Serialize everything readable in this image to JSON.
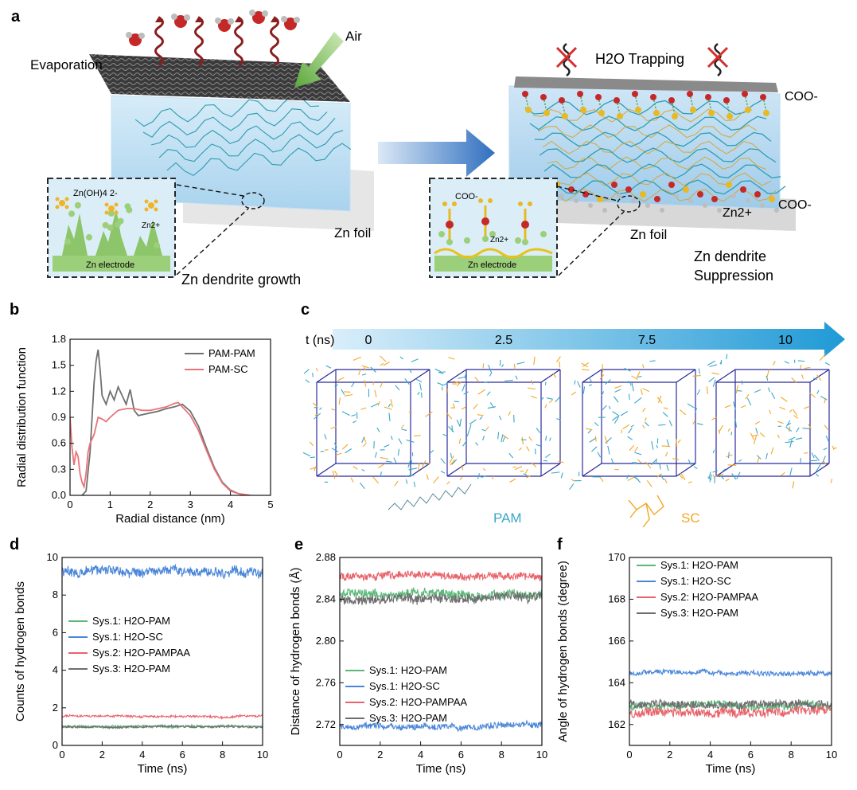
{
  "panel_a": {
    "letter": "a",
    "evaporation": "Evaporation",
    "air": "Air",
    "water_trapping": "H2O Trapping",
    "coo_top": "COO-",
    "coo_right": "COO-",
    "zn2_right": "Zn2+",
    "zn_foil_left": "Zn foil",
    "zn_foil_right": "Zn foil",
    "zn_dendrite_growth": "Zn dendrite growth",
    "zn_dendrite_suppression_1": "Zn dendrite",
    "zn_dendrite_suppression_2": "Suppression",
    "inset_left": {
      "zincate": "Zn(OH)4 2-",
      "zn2": "Zn2+",
      "electrode": "Zn electrode"
    },
    "inset_right": {
      "coo": "COO-",
      "zn2": "Zn2+",
      "electrode": "Zn electrode"
    }
  },
  "panel_c": {
    "letter": "c",
    "axis_label": "t (ns)",
    "times": [
      "0",
      "2.5",
      "7.5",
      "10"
    ],
    "legend_pam": "PAM",
    "legend_sc": "SC",
    "colors": {
      "arrow": "#1f9ad6",
      "pam": "#3aa7c9",
      "sc": "#f5a623",
      "box": "#2b2b9c"
    }
  },
  "chart_data": [
    {
      "id": "b",
      "letter": "b",
      "type": "line",
      "xlabel": "Radial distance (nm)",
      "ylabel": "Radial distribution function",
      "xlim": [
        0,
        5
      ],
      "ylim": [
        0,
        1.8
      ],
      "xticks": [
        "0",
        "1",
        "2",
        "3",
        "4",
        "5"
      ],
      "yticks": [
        "0.0",
        "0.3",
        "0.6",
        "0.9",
        "1.2",
        "1.5",
        "1.8"
      ],
      "legend_position": "top-right",
      "series": [
        {
          "name": "PAM-PAM",
          "color": "#707070",
          "x": [
            0.3,
            0.4,
            0.5,
            0.55,
            0.6,
            0.65,
            0.7,
            0.75,
            0.8,
            0.9,
            1.0,
            1.1,
            1.2,
            1.3,
            1.4,
            1.5,
            1.6,
            1.7,
            1.8,
            2.0,
            2.2,
            2.4,
            2.6,
            2.8,
            3.0,
            3.2,
            3.4,
            3.6,
            3.8,
            4.0,
            4.2,
            4.4
          ],
          "y": [
            0.0,
            0.05,
            0.5,
            0.9,
            1.3,
            1.55,
            1.68,
            1.45,
            1.15,
            1.05,
            1.2,
            1.1,
            1.25,
            1.15,
            1.05,
            1.22,
            0.98,
            0.92,
            0.93,
            0.95,
            0.97,
            1.0,
            1.02,
            1.05,
            0.97,
            0.8,
            0.55,
            0.32,
            0.15,
            0.06,
            0.02,
            0.0
          ]
        },
        {
          "name": "PAM-SC",
          "color": "#e8737a",
          "x": [
            0.0,
            0.05,
            0.1,
            0.15,
            0.2,
            0.25,
            0.3,
            0.35,
            0.4,
            0.45,
            0.5,
            0.6,
            0.7,
            0.8,
            0.9,
            1.0,
            1.2,
            1.4,
            1.6,
            1.8,
            2.0,
            2.2,
            2.4,
            2.6,
            2.7,
            2.8,
            3.0,
            3.2,
            3.4,
            3.6,
            3.8,
            4.0,
            4.2,
            4.5
          ],
          "y": [
            0.9,
            0.55,
            0.35,
            0.5,
            0.45,
            0.25,
            0.15,
            0.1,
            0.25,
            0.5,
            0.6,
            0.7,
            0.9,
            0.88,
            0.85,
            0.9,
            0.98,
            1.0,
            1.0,
            0.98,
            0.98,
            1.0,
            1.02,
            1.06,
            1.07,
            1.02,
            0.92,
            0.75,
            0.52,
            0.3,
            0.14,
            0.05,
            0.02,
            0.0
          ]
        }
      ]
    },
    {
      "id": "d",
      "letter": "d",
      "type": "line",
      "xlabel": "Time (ns)",
      "ylabel": "Counts of hydrogen bonds",
      "xlim": [
        0,
        10
      ],
      "ylim": [
        0,
        10
      ],
      "xticks": [
        "0",
        "2",
        "4",
        "6",
        "8",
        "10"
      ],
      "yticks": [
        "0",
        "2",
        "4",
        "6",
        "8",
        "10"
      ],
      "legend_position": "center-left",
      "series": [
        {
          "name": "Sys.1: H2O-PAM",
          "color": "#5cb87a",
          "mean": 1.0,
          "noise": 0.08
        },
        {
          "name": "Sys.1: H2O-SC",
          "color": "#4a86d8",
          "mean": 9.25,
          "noise": 0.35
        },
        {
          "name": "Sys.2: H2O-PAMPAA",
          "color": "#e8636b",
          "mean": 1.55,
          "noise": 0.08
        },
        {
          "name": "Sys.3: H2O-PAM",
          "color": "#6e6e6e",
          "mean": 0.98,
          "noise": 0.07
        }
      ]
    },
    {
      "id": "e",
      "letter": "e",
      "type": "line",
      "xlabel": "Time (ns)",
      "ylabel": "Distance of hydrogen bonds (Å)",
      "xlim": [
        0,
        10
      ],
      "ylim": [
        2.7,
        2.88
      ],
      "xticks": [
        "0",
        "2",
        "4",
        "6",
        "8",
        "10"
      ],
      "yticks": [
        "2.72",
        "2.76",
        "2.80",
        "2.84",
        "2.88"
      ],
      "legend_position": "bottom-left",
      "series": [
        {
          "name": "Sys.1: H2O-PAM",
          "color": "#5cb87a",
          "mean": 2.845,
          "noise": 0.006
        },
        {
          "name": "Sys.1: H2O-SC",
          "color": "#4a86d8",
          "mean": 2.718,
          "noise": 0.004
        },
        {
          "name": "Sys.2: H2O-PAMPAA",
          "color": "#e8636b",
          "mean": 2.862,
          "noise": 0.005
        },
        {
          "name": "Sys.3: H2O-PAM",
          "color": "#6e6e6e",
          "mean": 2.84,
          "noise": 0.006
        }
      ]
    },
    {
      "id": "f",
      "letter": "f",
      "type": "line",
      "xlabel": "Time (ns)",
      "ylabel": "Angle of hydrogen bonds (degree)",
      "xlim": [
        0,
        10
      ],
      "ylim": [
        161,
        170
      ],
      "xticks": [
        "0",
        "2",
        "4",
        "6",
        "8",
        "10"
      ],
      "yticks": [
        "162",
        "164",
        "166",
        "168",
        "170"
      ],
      "legend_position": "top-left",
      "series": [
        {
          "name": "Sys.1: H2O-PAM",
          "color": "#5cb87a",
          "mean": 162.9,
          "noise": 0.25
        },
        {
          "name": "Sys.1: H2O-SC",
          "color": "#4a86d8",
          "mean": 164.45,
          "noise": 0.15
        },
        {
          "name": "Sys.2: H2O-PAMPAA",
          "color": "#e8636b",
          "mean": 162.6,
          "noise": 0.3
        },
        {
          "name": "Sys.3: H2O-PAM",
          "color": "#6e6e6e",
          "mean": 163.0,
          "noise": 0.25
        }
      ]
    }
  ]
}
